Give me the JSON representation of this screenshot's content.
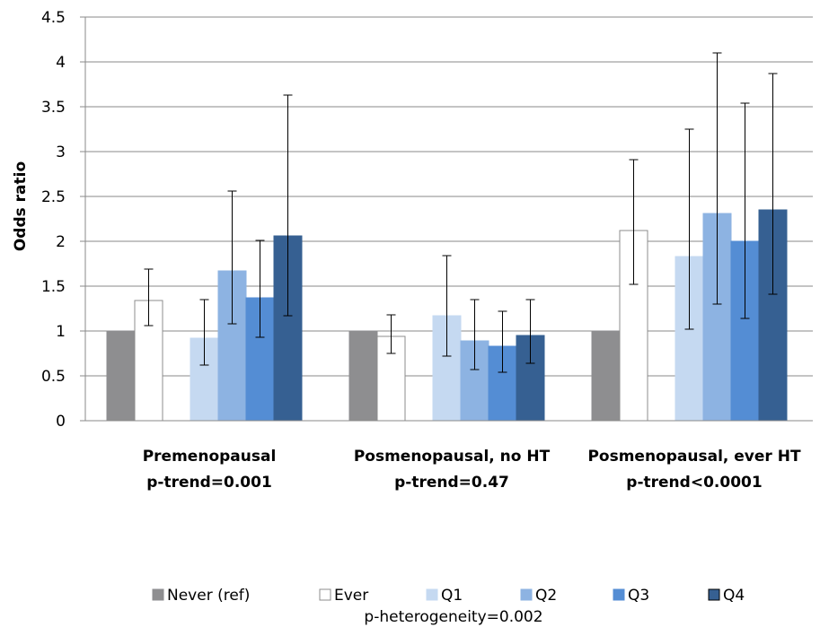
{
  "chart_data": {
    "type": "bar",
    "title": "",
    "xlabel": "",
    "ylabel": "Odds ratio",
    "ylim": [
      0,
      4.5
    ],
    "yticks": [
      "0",
      "0.5",
      "1",
      "1.5",
      "2",
      "2.5",
      "3",
      "3.5",
      "4",
      "4.5"
    ],
    "grid": true,
    "legend_position": "bottom",
    "categories": [
      {
        "line1": "Premenopausal",
        "line2": "p-trend=0.001"
      },
      {
        "line1": "Posmenopausal, no HT",
        "line2": "p-trend=0.47"
      },
      {
        "line1": "Posmenopausal, ever HT",
        "line2": "p-trend<0.0001"
      }
    ],
    "series": [
      {
        "name": "Never (ref)",
        "color": "#8e8e90",
        "stroke": "#8e8e90",
        "values": [
          1.0,
          1.0,
          1.0
        ],
        "lower": [
          null,
          null,
          null
        ],
        "upper": [
          null,
          null,
          null
        ]
      },
      {
        "name": "Ever",
        "color": "#ffffff",
        "stroke": "#8c8c8c",
        "values": [
          1.34,
          0.94,
          2.12
        ],
        "lower": [
          1.06,
          0.75,
          1.52
        ],
        "upper": [
          1.69,
          1.18,
          2.91
        ]
      },
      {
        "name": "Q1",
        "color": "#c5d9f1",
        "stroke": "#c5d9f1",
        "values": [
          0.92,
          1.17,
          1.83
        ],
        "lower": [
          0.62,
          0.72,
          1.02
        ],
        "upper": [
          1.35,
          1.84,
          3.25
        ]
      },
      {
        "name": "Q2",
        "color": "#8db3e2",
        "stroke": "#8db3e2",
        "values": [
          1.67,
          0.89,
          2.31
        ],
        "lower": [
          1.08,
          0.57,
          1.3
        ],
        "upper": [
          2.56,
          1.35,
          4.1
        ]
      },
      {
        "name": "Q3",
        "color": "#548dd4",
        "stroke": "#548dd4",
        "values": [
          1.37,
          0.83,
          2.0
        ],
        "lower": [
          0.93,
          0.54,
          1.14
        ],
        "upper": [
          2.01,
          1.22,
          3.54
        ]
      },
      {
        "name": "Q4",
        "color": "#366092",
        "stroke": "#366092",
        "values": [
          2.06,
          0.95,
          2.35
        ],
        "lower": [
          1.17,
          0.64,
          1.41
        ],
        "upper": [
          3.63,
          1.35,
          3.87
        ]
      }
    ],
    "footnote": "p-heterogeneity=0.002"
  }
}
